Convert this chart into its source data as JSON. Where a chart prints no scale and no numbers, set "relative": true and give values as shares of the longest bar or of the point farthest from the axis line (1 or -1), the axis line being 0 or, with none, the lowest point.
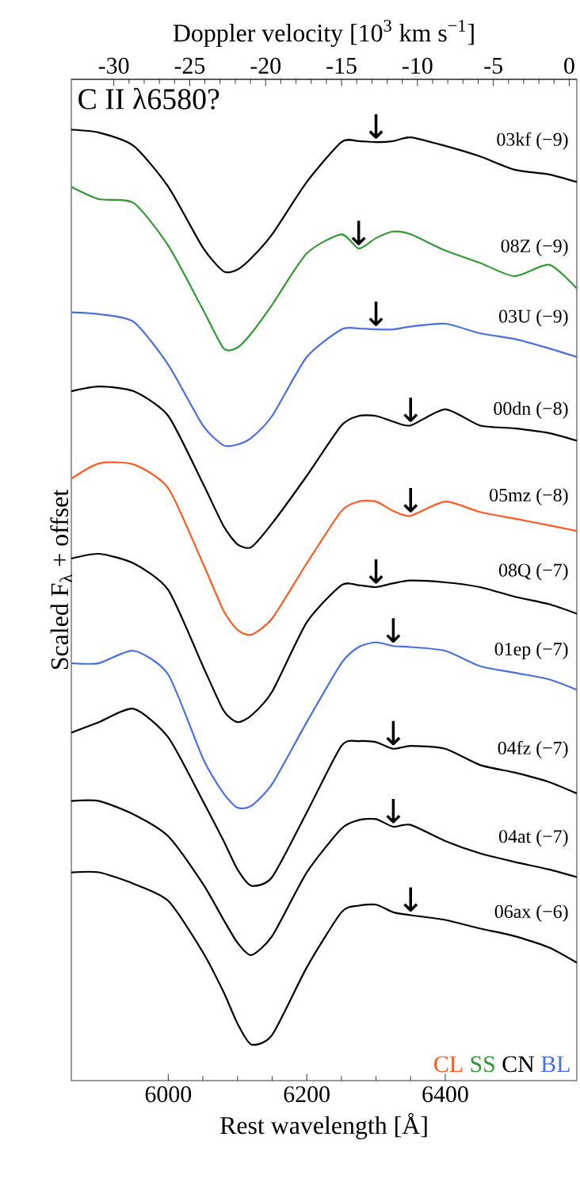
{
  "chart_data": {
    "type": "line",
    "relative": true,
    "title": "C II λ6580?",
    "xlabel": "Rest wavelength  [Å]",
    "x2label": "Doppler velocity  [10$^{3}$ km s$^{−1}$]",
    "ylabel": "Scaled F$_{λ}$ + offset",
    "xlim": [
      5860,
      6590
    ],
    "xticks": [
      6000,
      6200,
      6400
    ],
    "x2lim": [
      -32.8,
      0.5
    ],
    "x2ticks": [
      -30,
      -25,
      -20,
      -15,
      -10,
      -5,
      0
    ],
    "x": [
      5860,
      5900,
      5950,
      6000,
      6050,
      6080,
      6100,
      6120,
      6150,
      6200,
      6250,
      6275,
      6300,
      6325,
      6350,
      6400,
      6450,
      6500,
      6550,
      6590
    ],
    "series": [
      {
        "name": "03kf (−9)",
        "color": "#000000",
        "values": [
          1.0,
          0.997,
          0.983,
          0.94,
          0.876,
          0.851,
          0.853,
          0.865,
          0.89,
          0.945,
          0.987,
          0.988,
          0.987,
          0.988,
          0.992,
          0.983,
          0.972,
          0.958,
          0.953,
          0.945
        ]
      },
      {
        "name": "08Z (−9)",
        "color": "#339933",
        "values": [
          0.94,
          0.927,
          0.923,
          0.878,
          0.811,
          0.77,
          0.771,
          0.786,
          0.816,
          0.87,
          0.89,
          0.875,
          0.886,
          0.893,
          0.89,
          0.873,
          0.86,
          0.846,
          0.858,
          0.833
        ]
      },
      {
        "name": "03U (−9)",
        "color": "#4a6fe3",
        "values": [
          0.808,
          0.806,
          0.798,
          0.753,
          0.689,
          0.668,
          0.669,
          0.676,
          0.699,
          0.761,
          0.79,
          0.791,
          0.79,
          0.79,
          0.793,
          0.796,
          0.786,
          0.78,
          0.77,
          0.761
        ]
      },
      {
        "name": "00dn (−8)",
        "color": "#000000",
        "values": [
          0.725,
          0.73,
          0.725,
          0.699,
          0.628,
          0.583,
          0.564,
          0.561,
          0.586,
          0.636,
          0.689,
          0.699,
          0.699,
          0.693,
          0.689,
          0.706,
          0.689,
          0.686,
          0.681,
          0.673
        ]
      },
      {
        "name": "05mz (−8)",
        "color": "#ff5a1f",
        "values": [
          0.633,
          0.649,
          0.648,
          0.623,
          0.544,
          0.494,
          0.474,
          0.469,
          0.486,
          0.544,
          0.599,
          0.609,
          0.609,
          0.599,
          0.594,
          0.609,
          0.598,
          0.591,
          0.584,
          0.578
        ]
      },
      {
        "name": "08Q (−7)",
        "color": "#000000",
        "values": [
          0.549,
          0.554,
          0.544,
          0.516,
          0.436,
          0.389,
          0.377,
          0.384,
          0.409,
          0.482,
          0.521,
          0.521,
          0.519,
          0.523,
          0.526,
          0.524,
          0.519,
          0.509,
          0.501,
          0.491
        ]
      },
      {
        "name": "01ep (−7)",
        "color": "#4a6fe3",
        "values": [
          0.439,
          0.439,
          0.452,
          0.427,
          0.339,
          0.302,
          0.287,
          0.289,
          0.312,
          0.377,
          0.439,
          0.456,
          0.461,
          0.457,
          0.456,
          0.452,
          0.436,
          0.429,
          0.422,
          0.411
        ]
      },
      {
        "name": "04fz (−7)",
        "color": "#000000",
        "values": [
          0.366,
          0.377,
          0.391,
          0.361,
          0.294,
          0.252,
          0.222,
          0.205,
          0.214,
          0.282,
          0.352,
          0.357,
          0.356,
          0.349,
          0.352,
          0.349,
          0.332,
          0.324,
          0.314,
          0.302
        ]
      },
      {
        "name": "04at (−7)",
        "color": "#000000",
        "values": [
          0.294,
          0.294,
          0.28,
          0.257,
          0.207,
          0.169,
          0.145,
          0.132,
          0.152,
          0.219,
          0.265,
          0.274,
          0.275,
          0.267,
          0.269,
          0.252,
          0.239,
          0.23,
          0.222,
          0.214
        ]
      },
      {
        "name": "06ax (−6)",
        "color": "#000000",
        "values": [
          0.219,
          0.219,
          0.207,
          0.189,
          0.135,
          0.093,
          0.06,
          0.038,
          0.048,
          0.119,
          0.177,
          0.184,
          0.185,
          0.177,
          0.174,
          0.169,
          0.16,
          0.152,
          0.14,
          0.124
        ]
      }
    ],
    "annotations": [
      {
        "text": "↓",
        "x": 6300,
        "y": 0.987
      },
      {
        "text": "↓",
        "x": 6275,
        "y": 0.875
      },
      {
        "text": "↓",
        "x": 6300,
        "y": 0.79
      },
      {
        "text": "↓",
        "x": 6350,
        "y": 0.689
      },
      {
        "text": "↓",
        "x": 6350,
        "y": 0.594
      },
      {
        "text": "↓",
        "x": 6300,
        "y": 0.519
      },
      {
        "text": "↓",
        "x": 6325,
        "y": 0.457
      },
      {
        "text": "↓",
        "x": 6325,
        "y": 0.349
      },
      {
        "text": "↓",
        "x": 6325,
        "y": 0.267
      },
      {
        "text": "↓",
        "x": 6350,
        "y": 0.174
      },
      "CL",
      "SS",
      "CN",
      "BL"
    ]
  }
}
